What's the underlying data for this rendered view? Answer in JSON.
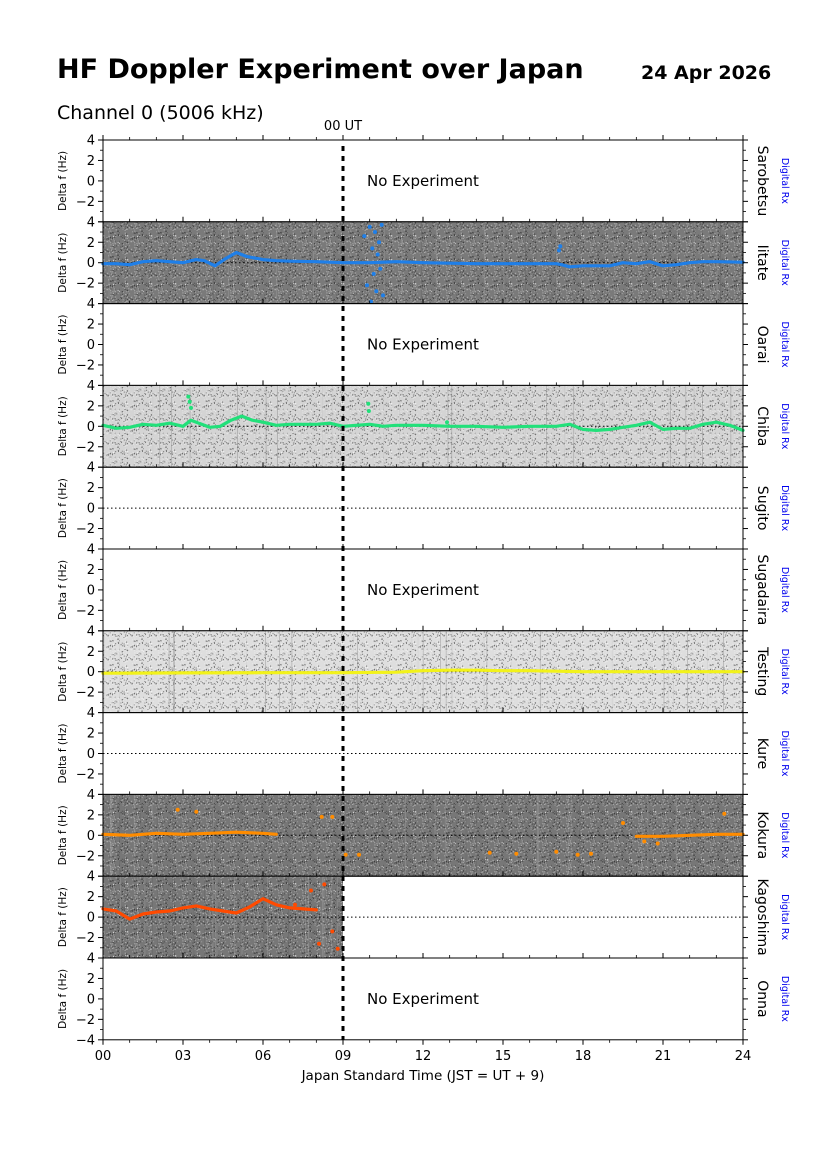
{
  "header": {
    "title": "HF Doppler Experiment over Japan",
    "date": "24 Apr 2026",
    "channel": "Channel 0 (5006 kHz)"
  },
  "chart_data": {
    "type": "scatter",
    "ut_marker": {
      "label": "00 UT",
      "x": 9
    },
    "xlabel": "Japan Standard Time (JST = UT + 9)",
    "xlim": [
      0,
      24
    ],
    "xticks": [
      "00",
      "03",
      "06",
      "09",
      "12",
      "15",
      "18",
      "21",
      "24"
    ],
    "ylabel": "Delta f (Hz)",
    "ylim": [
      -4,
      4
    ],
    "yticks": [
      4,
      2,
      0,
      -2,
      -4
    ],
    "receiver_label": "Digital Rx",
    "no_experiment_text": "No Experiment",
    "panels": [
      {
        "station": "Sarobetsu",
        "status": "no_experiment",
        "background": "none",
        "color": "",
        "trace": []
      },
      {
        "station": "Iitate",
        "status": "data",
        "background": "#7a7a7a",
        "color": "#1f7fe8",
        "trace": [
          [
            0,
            -0.1
          ],
          [
            0.5,
            -0.1
          ],
          [
            1,
            -0.2
          ],
          [
            1.5,
            0.1
          ],
          [
            2,
            0.2
          ],
          [
            2.5,
            0.1
          ],
          [
            3,
            0.0
          ],
          [
            3.5,
            0.3
          ],
          [
            3.8,
            0.2
          ],
          [
            4.2,
            -0.3
          ],
          [
            4.6,
            0.4
          ],
          [
            5,
            1.0
          ],
          [
            5.4,
            0.6
          ],
          [
            6,
            0.3
          ],
          [
            6.5,
            0.2
          ],
          [
            7,
            0.15
          ],
          [
            8,
            0.1
          ],
          [
            9,
            0.0
          ],
          [
            10,
            0.0
          ],
          [
            11,
            0.1
          ],
          [
            12,
            0.0
          ],
          [
            13,
            -0.05
          ],
          [
            14,
            -0.1
          ],
          [
            15,
            -0.1
          ],
          [
            16,
            -0.1
          ],
          [
            17,
            -0.1
          ],
          [
            17.2,
            -0.2
          ],
          [
            17.5,
            -0.4
          ],
          [
            18,
            -0.3
          ],
          [
            19,
            -0.3
          ],
          [
            19.5,
            0.0
          ],
          [
            20,
            -0.1
          ],
          [
            20.5,
            0.1
          ],
          [
            21,
            -0.3
          ],
          [
            21.5,
            -0.2
          ],
          [
            22,
            0.0
          ],
          [
            22.5,
            0.1
          ],
          [
            23,
            0.1
          ],
          [
            24,
            0.05
          ]
        ],
        "scatter": [
          [
            9.8,
            2.6
          ],
          [
            9.9,
            -2.2
          ],
          [
            10.0,
            3.5
          ],
          [
            10.05,
            -3.8
          ],
          [
            10.1,
            1.4
          ],
          [
            10.15,
            -1.1
          ],
          [
            10.2,
            3.0
          ],
          [
            10.25,
            -2.8
          ],
          [
            10.3,
            0.8
          ],
          [
            10.35,
            2.0
          ],
          [
            10.4,
            -0.6
          ],
          [
            10.45,
            3.7
          ],
          [
            10.5,
            -3.2
          ],
          [
            17.1,
            1.2
          ],
          [
            17.15,
            1.6
          ]
        ]
      },
      {
        "station": "Oarai",
        "status": "no_experiment",
        "background": "none",
        "color": "",
        "trace": []
      },
      {
        "station": "Chiba",
        "status": "data",
        "background": "#d4d4d4",
        "color": "#22e07a",
        "trace": [
          [
            0,
            0.1
          ],
          [
            0.5,
            -0.2
          ],
          [
            1,
            -0.1
          ],
          [
            1.5,
            0.2
          ],
          [
            2,
            0.1
          ],
          [
            2.5,
            0.3
          ],
          [
            3,
            0.0
          ],
          [
            3.3,
            0.6
          ],
          [
            3.6,
            0.3
          ],
          [
            4,
            -0.1
          ],
          [
            4.4,
            0.0
          ],
          [
            4.8,
            0.6
          ],
          [
            5.2,
            1.0
          ],
          [
            5.6,
            0.6
          ],
          [
            6,
            0.4
          ],
          [
            6.5,
            0.1
          ],
          [
            7,
            0.2
          ],
          [
            7.5,
            0.2
          ],
          [
            8,
            0.2
          ],
          [
            8.5,
            0.3
          ],
          [
            9,
            0.0
          ],
          [
            9.5,
            0.1
          ],
          [
            10,
            0.2
          ],
          [
            10.5,
            0.0
          ],
          [
            11,
            0.1
          ],
          [
            12,
            0.1
          ],
          [
            13,
            0.0
          ],
          [
            14,
            0.0
          ],
          [
            15,
            -0.1
          ],
          [
            16,
            0.0
          ],
          [
            17,
            0.0
          ],
          [
            17.5,
            0.2
          ],
          [
            18,
            -0.3
          ],
          [
            18.5,
            -0.4
          ],
          [
            19,
            -0.3
          ],
          [
            19.5,
            -0.1
          ],
          [
            20,
            0.1
          ],
          [
            20.5,
            0.4
          ],
          [
            21,
            -0.3
          ],
          [
            21.5,
            -0.2
          ],
          [
            22,
            -0.2
          ],
          [
            22.5,
            0.2
          ],
          [
            23,
            0.4
          ],
          [
            23.5,
            0.1
          ],
          [
            24,
            -0.4
          ]
        ],
        "scatter": [
          [
            3.2,
            2.9
          ],
          [
            3.25,
            2.4
          ],
          [
            3.3,
            1.8
          ],
          [
            9.95,
            2.2
          ],
          [
            9.97,
            1.5
          ],
          [
            12.9,
            0.4
          ]
        ]
      },
      {
        "station": "Sugito",
        "status": "empty",
        "background": "none",
        "color": "",
        "trace": []
      },
      {
        "station": "Sugadaira",
        "status": "no_experiment",
        "background": "none",
        "color": "",
        "trace": []
      },
      {
        "station": "Testing",
        "status": "data",
        "background": "#dedede",
        "color": "#f2f21a",
        "trace": [
          [
            0,
            -0.15
          ],
          [
            3,
            -0.12
          ],
          [
            6,
            -0.1
          ],
          [
            9,
            -0.1
          ],
          [
            11,
            -0.05
          ],
          [
            12,
            0.1
          ],
          [
            13,
            0.15
          ],
          [
            14,
            0.15
          ],
          [
            15,
            0.1
          ],
          [
            16,
            0.1
          ],
          [
            17,
            0.05
          ],
          [
            18,
            0.0
          ],
          [
            19,
            0.0
          ],
          [
            20,
            0.0
          ],
          [
            21,
            0.0
          ],
          [
            24,
            0.0
          ]
        ],
        "scatter": []
      },
      {
        "station": "Kure",
        "status": "empty",
        "background": "none",
        "color": "",
        "trace": []
      },
      {
        "station": "Kokura",
        "status": "data",
        "background": "#777777",
        "color": "#ff8c00",
        "trace": [
          [
            0,
            0.1
          ],
          [
            1,
            0.0
          ],
          [
            2,
            0.2
          ],
          [
            3,
            0.1
          ],
          [
            4,
            0.2
          ],
          [
            5,
            0.3
          ],
          [
            6,
            0.2
          ],
          [
            6.5,
            0.1
          ]
        ],
        "trace2": [
          [
            20,
            -0.1
          ],
          [
            21,
            -0.1
          ],
          [
            22,
            0.0
          ],
          [
            23,
            0.1
          ],
          [
            24,
            0.1
          ]
        ],
        "scatter": [
          [
            8.2,
            1.8
          ],
          [
            8.6,
            1.8
          ],
          [
            9.1,
            -1.9
          ],
          [
            9.6,
            -1.9
          ],
          [
            14.5,
            -1.7
          ],
          [
            15.5,
            -1.8
          ],
          [
            17,
            -1.6
          ],
          [
            17.8,
            -1.9
          ],
          [
            18.3,
            -1.8
          ],
          [
            2.8,
            2.5
          ],
          [
            3.5,
            2.3
          ],
          [
            23.3,
            2.1
          ],
          [
            19.5,
            1.2
          ],
          [
            20.3,
            -0.6
          ],
          [
            20.8,
            -0.8
          ]
        ]
      },
      {
        "station": "Kagoshima",
        "status": "data",
        "background": "#777777",
        "partial_until": 9,
        "color": "#ff4a00",
        "trace": [
          [
            0,
            0.8
          ],
          [
            0.5,
            0.6
          ],
          [
            1,
            -0.2
          ],
          [
            1.5,
            0.3
          ],
          [
            2,
            0.5
          ],
          [
            2.5,
            0.6
          ],
          [
            3,
            0.9
          ],
          [
            3.5,
            1.1
          ],
          [
            4,
            0.8
          ],
          [
            4.5,
            0.6
          ],
          [
            5,
            0.4
          ],
          [
            5.5,
            1.0
          ],
          [
            6,
            1.8
          ],
          [
            6.5,
            1.2
          ],
          [
            7,
            0.9
          ],
          [
            7.5,
            0.8
          ],
          [
            8,
            0.7
          ]
        ],
        "scatter": [
          [
            7.2,
            1.2
          ],
          [
            7.8,
            2.6
          ],
          [
            8.3,
            3.2
          ],
          [
            8.6,
            -1.4
          ],
          [
            8.8,
            -3.1
          ],
          [
            8.1,
            -2.6
          ]
        ]
      },
      {
        "station": "Onna",
        "status": "no_experiment",
        "background": "none",
        "color": "",
        "trace": []
      }
    ]
  }
}
